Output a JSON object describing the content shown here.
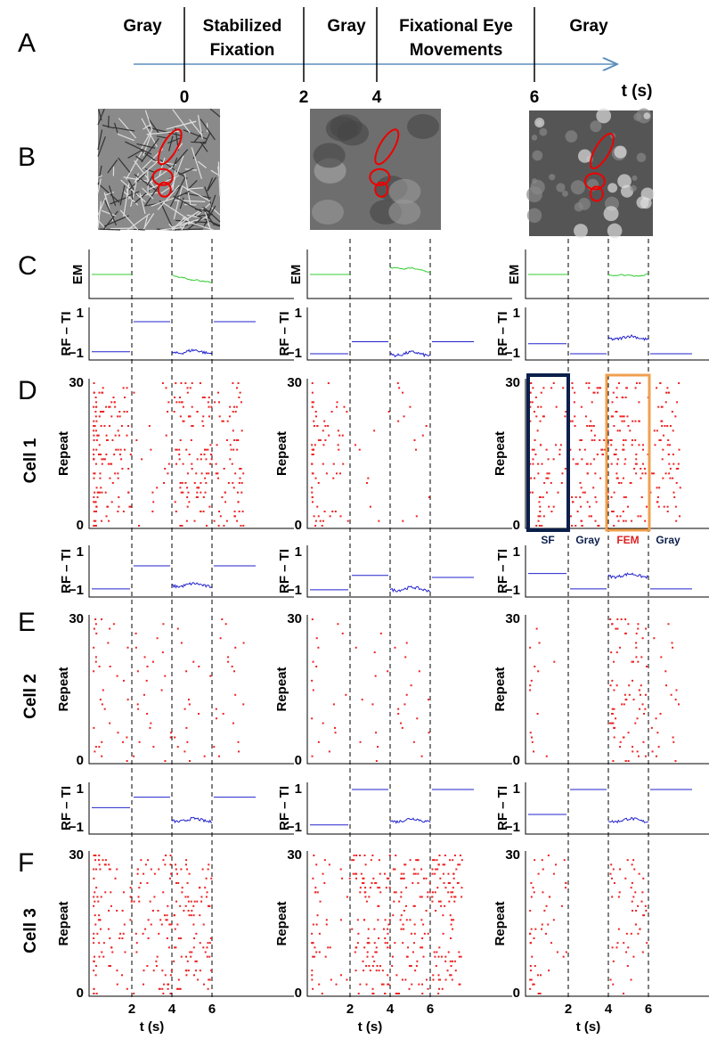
{
  "panel_labels": [
    "A",
    "B",
    "C",
    "D",
    "E",
    "F"
  ],
  "timeline": {
    "phases": [
      [
        "Gray"
      ],
      [
        "Stabilized",
        "Fixation"
      ],
      [
        "Gray"
      ],
      [
        "Fixational Eye",
        "Movements"
      ],
      [
        "Gray"
      ]
    ],
    "ticks": [
      "0",
      "2",
      "4",
      "6"
    ],
    "axis_label": "t (s)"
  },
  "axes": {
    "em_label": "EM",
    "rf_label": "RF – TI",
    "rf_ticks": [
      "1",
      "−1"
    ],
    "repeat_label": "Repeat",
    "repeat_ticks": [
      "30",
      "0"
    ],
    "x_ticks": [
      "2",
      "4",
      "6"
    ],
    "x_label": "t (s)"
  },
  "cells": [
    "Cell 1",
    "Cell 2",
    "Cell 3"
  ],
  "annotations": [
    "SF",
    "Gray",
    "FEM",
    "Gray"
  ]
}
